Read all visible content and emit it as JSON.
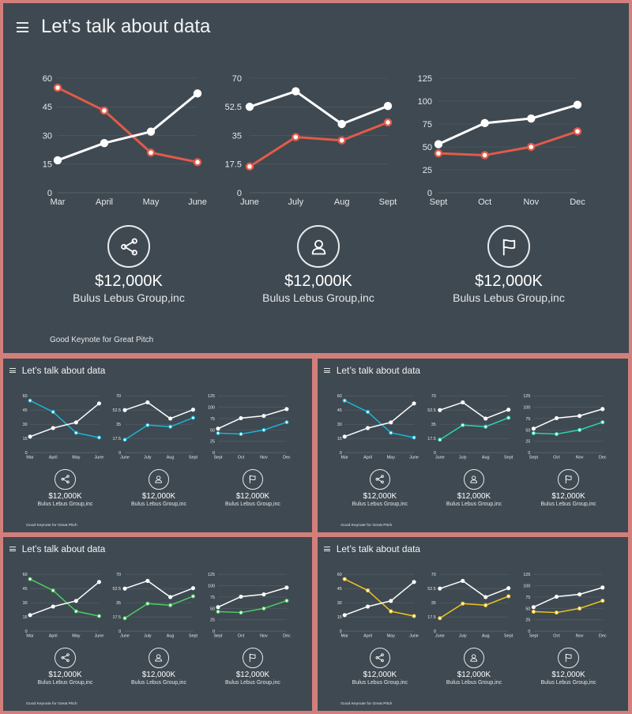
{
  "page": {
    "title": "Let’s talk about data",
    "footer": "Good Keynote for Great Pitch"
  },
  "colors": {
    "background": "#d27f7c",
    "slide": "#3f4951",
    "white_line": "#ffffff",
    "accents": [
      "#e25a4a",
      "#19b6d8",
      "#2bd6b4",
      "#4ccd63",
      "#f0c420"
    ]
  },
  "stats": [
    {
      "icon": "share-icon",
      "value": "$12,000K",
      "company": "Bulus Lebus Group,inc"
    },
    {
      "icon": "user-icon",
      "value": "$12,000K",
      "company": "Bulus Lebus Group,inc"
    },
    {
      "icon": "flag-icon",
      "value": "$12,000K",
      "company": "Bulus Lebus Group,inc"
    }
  ],
  "slides": [
    {
      "accent_a": "#e25a4a",
      "accent_b": "#e25a4a",
      "accent_c": "#e25a4a"
    },
    {
      "accent_a": "#19b6d8",
      "accent_b": "#19b6d8",
      "accent_c": "#19b6d8"
    },
    {
      "accent_a": "#19b6d8",
      "accent_b": "#2bd6b4",
      "accent_c": "#2bd6b4"
    },
    {
      "accent_a": "#4ccd63",
      "accent_b": "#4ccd63",
      "accent_c": "#4ccd63"
    },
    {
      "accent_a": "#f0c420",
      "accent_b": "#f0c420",
      "accent_c": "#f0c420"
    }
  ],
  "chart_data": [
    {
      "type": "line",
      "categories": [
        "Mar",
        "April",
        "May",
        "June"
      ],
      "yticks": [
        "0",
        "15",
        "30",
        "45",
        "60"
      ],
      "ylim": [
        0,
        60
      ],
      "series": [
        {
          "values": [
            17,
            26,
            32,
            52
          ]
        },
        {
          "values": [
            55,
            43,
            21,
            16
          ]
        }
      ]
    },
    {
      "type": "line",
      "categories": [
        "June",
        "July",
        "Aug",
        "Sept"
      ],
      "yticks": [
        "0",
        "17.5",
        "35",
        "52.5",
        "70"
      ],
      "ylim": [
        0,
        70
      ],
      "series": [
        {
          "values": [
            52.5,
            62,
            42,
            53
          ]
        },
        {
          "values": [
            16,
            34,
            32,
            43
          ]
        }
      ]
    },
    {
      "type": "line",
      "categories": [
        "Sept",
        "Oct",
        "Nov",
        "Dec"
      ],
      "yticks": [
        "0",
        "25",
        "50",
        "75",
        "100",
        "125"
      ],
      "ylim": [
        0,
        125
      ],
      "series": [
        {
          "values": [
            53,
            76,
            81,
            96
          ]
        },
        {
          "values": [
            43,
            41,
            50,
            67
          ]
        }
      ]
    }
  ]
}
